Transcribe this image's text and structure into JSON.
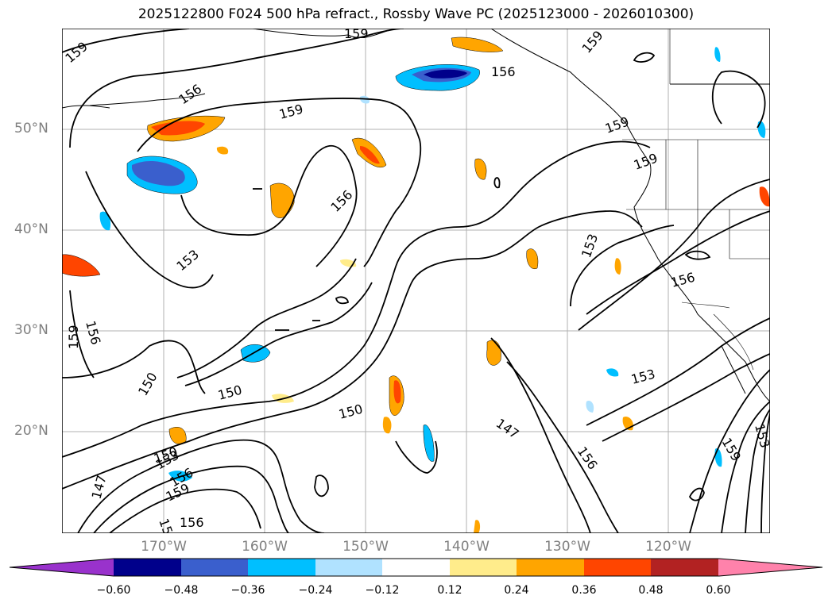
{
  "title": "2025122800 F024 500 hPa refract., Rossby Wave PC (2025123000 - 2026010300)",
  "lat_labels": [
    "50°N",
    "40°N",
    "30°N",
    "20°N"
  ],
  "lon_labels": [
    "170°W",
    "160°W",
    "150°W",
    "140°W",
    "130°W",
    "120°W"
  ],
  "contour_labels": [
    "159",
    "156",
    "159",
    "159",
    "156",
    "159",
    "159",
    "156",
    "159",
    "153",
    "153",
    "156",
    "159",
    "156",
    "150",
    "150",
    "150",
    "147",
    "156",
    "153",
    "153",
    "150",
    "159",
    "156",
    "159",
    "156",
    "147",
    "159",
    "153"
  ],
  "colorbar": {
    "ticks": [
      "−0.60",
      "−0.48",
      "−0.36",
      "−0.24",
      "−0.12",
      "0.12",
      "0.24",
      "0.36",
      "0.48",
      "0.60"
    ],
    "colors": [
      "#9932cc",
      "#00008b",
      "#3a5fcd",
      "#00bfff",
      "#b0e2ff",
      "#ffffff",
      "#ffec8b",
      "#ffa500",
      "#ff4500",
      "#b22222",
      "#ff82ab"
    ]
  }
}
